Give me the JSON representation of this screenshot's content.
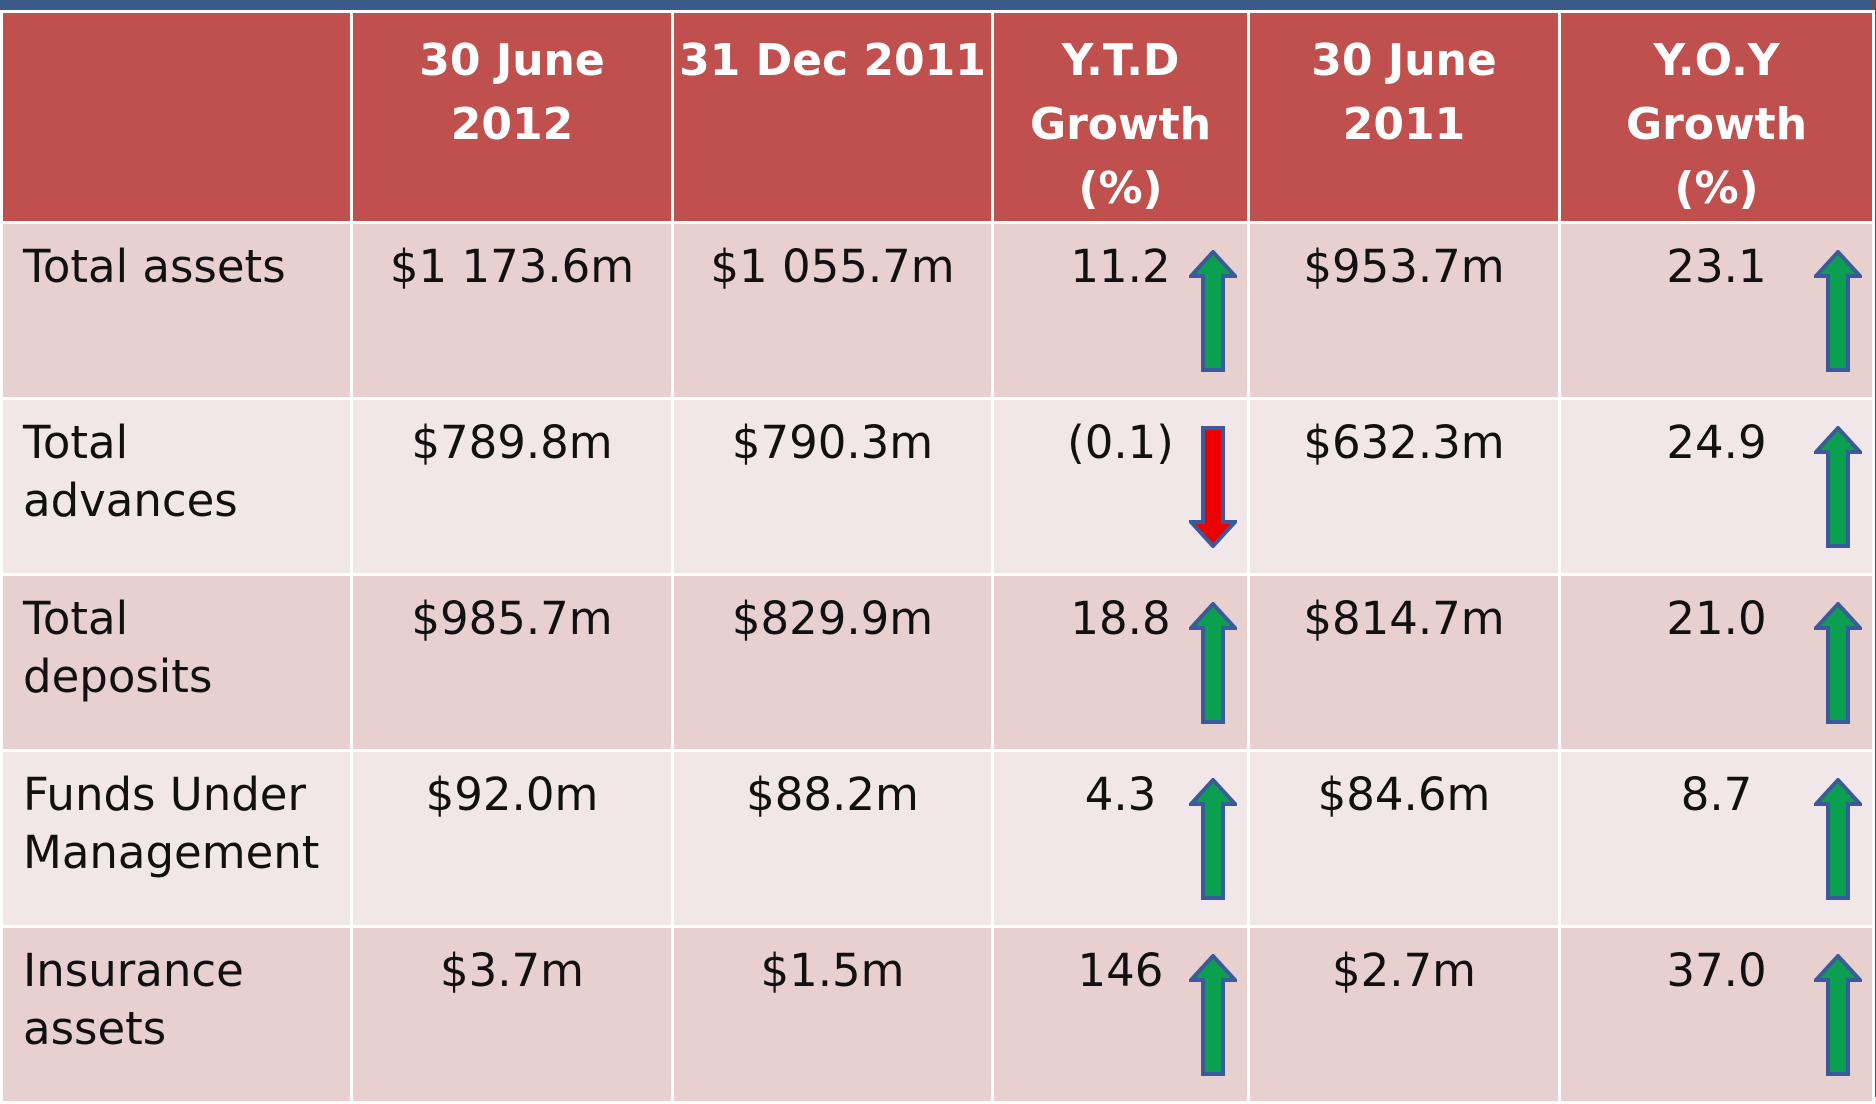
{
  "table": {
    "header": [
      "",
      "30 June\n2012",
      "31 Dec 2011",
      "Y.T.D\nGrowth\n(%)",
      "30 June\n2011",
      "Y.O.Y\nGrowth\n(%)"
    ],
    "rows": [
      [
        "Total assets",
        "$1 173.6m",
        "$1 055.7m",
        "11.2",
        "$953.7m",
        "23.1"
      ],
      [
        "Total\nadvances",
        "$789.8m",
        "$790.3m",
        "(0.1)",
        "$632.3m",
        "24.9"
      ],
      [
        "Total\ndeposits",
        "$985.7m",
        "$829.9m",
        "18.8",
        "$814.7m",
        "21.0"
      ],
      [
        "Funds Under\nManagement",
        "$92.0m",
        "$88.2m",
        "4.3",
        "$84.6m",
        "8.7"
      ],
      [
        "Insurance\nassets",
        "$3.7m",
        "$1.5m",
        "146",
        "$2.7m",
        "37.0"
      ]
    ]
  }
}
